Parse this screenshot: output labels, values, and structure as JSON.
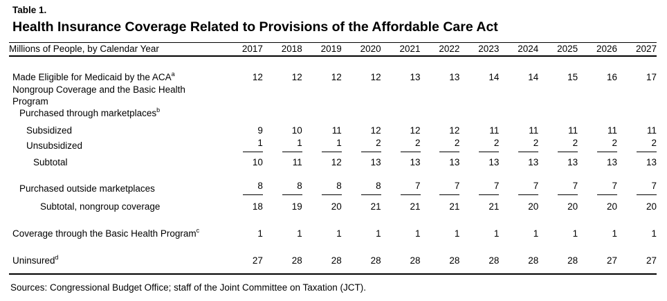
{
  "document": {
    "table_label": "Table 1.",
    "title": "Health Insurance Coverage Related to Provisions of the Affordable Care Act",
    "sources": "Sources: Congressional Budget Office; staff of the Joint Committee on Taxation (JCT)."
  },
  "table": {
    "header_label": "Millions of People, by Calendar Year",
    "years": [
      "2017",
      "2018",
      "2019",
      "2020",
      "2021",
      "2022",
      "2023",
      "2024",
      "2025",
      "2026",
      "2027"
    ],
    "rows": [
      {
        "label": "Made Eligible for Medicaid by the ACA",
        "sup": "a",
        "indent": 0,
        "gap": "lg",
        "values": [
          12,
          12,
          12,
          12,
          13,
          13,
          14,
          14,
          15,
          16,
          17
        ]
      },
      {
        "label": "Nongroup Coverage and the Basic Health Program",
        "indent": 0,
        "gap": "xl",
        "tight": true,
        "values": []
      },
      {
        "label": "Purchased through marketplaces",
        "sup": "b",
        "indent": 1,
        "tight": true,
        "values": []
      },
      {
        "label": "Subsidized",
        "indent": 2,
        "gap": "sm",
        "values": [
          9,
          10,
          11,
          12,
          12,
          12,
          11,
          11,
          11,
          11,
          11
        ]
      },
      {
        "label": "Unsubsidized",
        "indent": 2,
        "ruled": true,
        "values": [
          1,
          1,
          1,
          2,
          2,
          2,
          2,
          2,
          2,
          2,
          2
        ]
      },
      {
        "label": "Subtotal",
        "indent": 3,
        "gap": "xs",
        "values": [
          10,
          11,
          12,
          13,
          13,
          13,
          13,
          13,
          13,
          13,
          13
        ]
      },
      {
        "label": "Purchased outside marketplaces",
        "indent": 1,
        "gap": "md",
        "ruled": true,
        "values": [
          8,
          8,
          8,
          8,
          7,
          7,
          7,
          7,
          7,
          7,
          7
        ]
      },
      {
        "label": "Subtotal, nongroup coverage",
        "indent": 4,
        "gap": "sm",
        "values": [
          18,
          19,
          20,
          21,
          21,
          21,
          21,
          20,
          20,
          20,
          20
        ]
      },
      {
        "label": "Coverage through the Basic Health Program",
        "sup": "c",
        "indent": 0,
        "gap": "lg",
        "values": [
          1,
          1,
          1,
          1,
          1,
          1,
          1,
          1,
          1,
          1,
          1
        ]
      },
      {
        "label": "Uninsured",
        "sup": "d",
        "indent": 0,
        "gap": "lg",
        "values": [
          27,
          28,
          28,
          28,
          28,
          28,
          28,
          28,
          28,
          27,
          27
        ]
      }
    ]
  },
  "colors": {
    "text": "#000000",
    "background": "#ffffff",
    "rule": "#000000"
  }
}
